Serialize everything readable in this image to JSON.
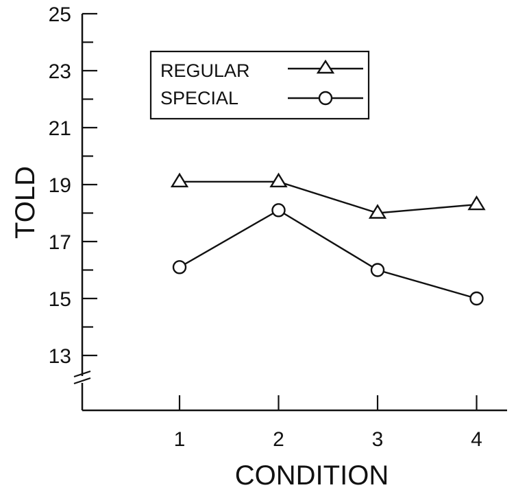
{
  "chart_data": {
    "type": "line",
    "xlabel": "CONDITION",
    "ylabel": "TOLD",
    "categories": [
      "1",
      "2",
      "3",
      "4"
    ],
    "y_ticks": [
      "13",
      "15",
      "17",
      "19",
      "21",
      "23",
      "25"
    ],
    "ylim": [
      11,
      25
    ],
    "axis_break": true,
    "grid": false,
    "legend_position": "top-left",
    "series": [
      {
        "name": "REGULAR",
        "marker": "triangle",
        "values": [
          19.1,
          19.1,
          18.0,
          18.3
        ]
      },
      {
        "name": "SPECIAL",
        "marker": "circle",
        "values": [
          16.1,
          18.1,
          16.0,
          15.0
        ]
      }
    ]
  }
}
